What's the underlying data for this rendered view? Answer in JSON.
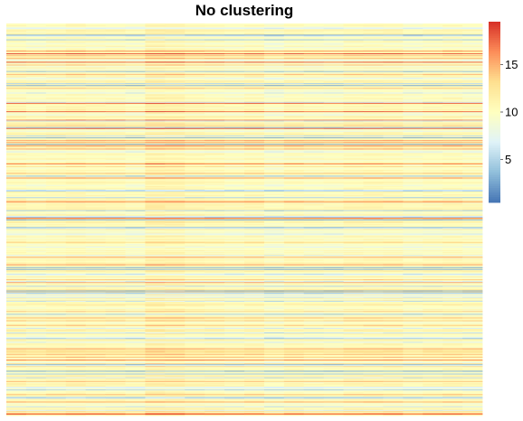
{
  "chart_data": {
    "type": "heatmap",
    "title": "No clustering",
    "xlabel": "",
    "ylabel": "",
    "n_rows": 420,
    "n_cols": 24,
    "colorbar": {
      "min": 0.5,
      "max": 19.5,
      "ticks": [
        5,
        10,
        15
      ],
      "tick_labels": [
        "5",
        "10",
        "15"
      ],
      "colors": [
        "#4575b4",
        "#91bfdb",
        "#e0f3f8",
        "#ffffbf",
        "#fee090",
        "#fc8d59",
        "#d73027"
      ]
    },
    "row_profile_note": "Each row has a base expression level; values shown as horizontal colored stripes",
    "highlight_row_value": 14
  }
}
